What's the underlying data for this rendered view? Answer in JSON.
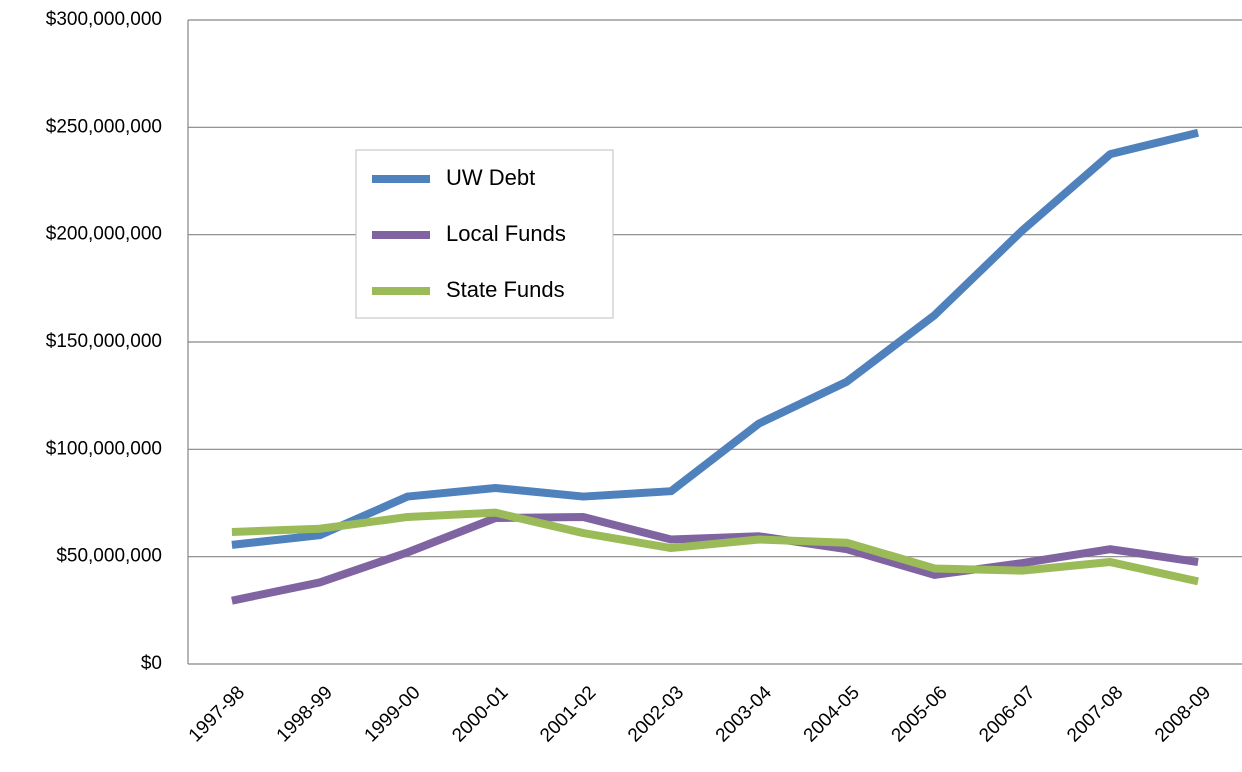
{
  "chart_data": {
    "type": "line",
    "categories": [
      "1997-98",
      "1998-99",
      "1999-00",
      "2000-01",
      "2001-02",
      "2002-03",
      "2003-04",
      "2004-05",
      "2005-06",
      "2006-07",
      "2007-08",
      "2008-09"
    ],
    "series": [
      {
        "name": "UW Debt",
        "color": "#4f81bd",
        "values": [
          55500000,
          60000000,
          78000000,
          82000000,
          78000000,
          80500000,
          112000000,
          131500000,
          162500000,
          202000000,
          237500000,
          247500000
        ]
      },
      {
        "name": "Local Funds",
        "color": "#8064a2",
        "values": [
          29500000,
          38000000,
          52000000,
          68000000,
          68500000,
          58000000,
          59500000,
          53500000,
          41500000,
          47000000,
          53500000,
          47500000
        ]
      },
      {
        "name": "State Funds",
        "color": "#9bbb59",
        "values": [
          61500000,
          63000000,
          68500000,
          70500000,
          61000000,
          54000000,
          58000000,
          56500000,
          44500000,
          43500000,
          47500000,
          38500000
        ]
      }
    ],
    "ylim": [
      0,
      300000000
    ],
    "yticks": [
      {
        "value": 0,
        "label": "$0"
      },
      {
        "value": 50000000,
        "label": "$50,000,000"
      },
      {
        "value": 100000000,
        "label": "$100,000,000"
      },
      {
        "value": 150000000,
        "label": "$150,000,000"
      },
      {
        "value": 200000000,
        "label": "$200,000,000"
      },
      {
        "value": 250000000,
        "label": "$250,000,000"
      },
      {
        "value": 300000000,
        "label": "$300,000,000"
      }
    ],
    "grid": true,
    "legend": "upper left"
  }
}
